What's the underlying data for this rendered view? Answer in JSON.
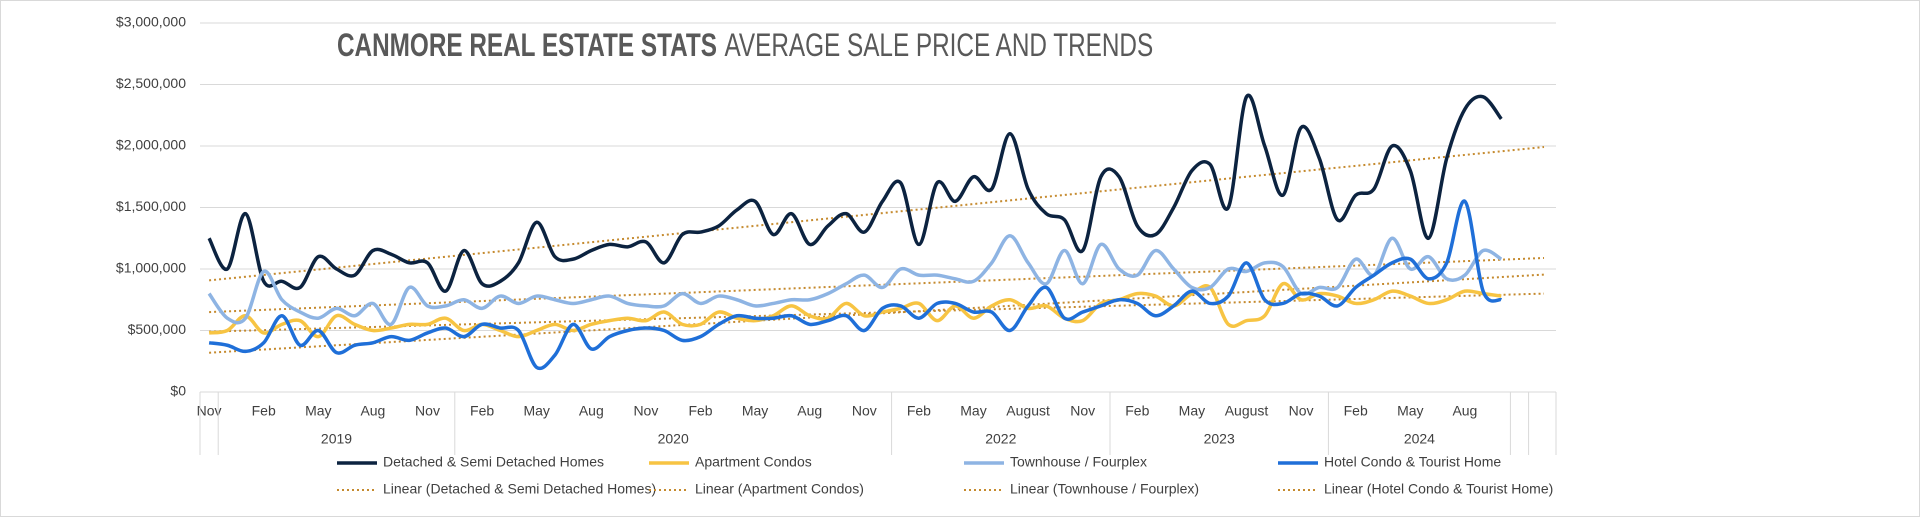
{
  "chart_data": {
    "type": "line",
    "title": "CANMORE REAL ESTATE STATS",
    "subtitle": "AVERAGE SALE PRICE AND TRENDS",
    "categories": [
      "Nov",
      null,
      null,
      "Feb",
      null,
      null,
      "May",
      null,
      null,
      "Aug",
      null,
      null,
      "Nov",
      null,
      null,
      "Feb",
      null,
      null,
      "May",
      null,
      null,
      "Aug",
      null,
      null,
      "Nov",
      null,
      null,
      "Feb",
      null,
      null,
      "May",
      null,
      null,
      "Aug",
      null,
      null,
      "Nov",
      null,
      null,
      "Feb",
      null,
      null,
      "May",
      null,
      null,
      "August",
      null,
      null,
      "Nov",
      null,
      null,
      "Feb",
      null,
      null,
      "May",
      null,
      null,
      "August",
      null,
      null,
      "Nov",
      null,
      null,
      "Feb",
      null,
      null,
      "May",
      null,
      null,
      "Aug",
      null,
      null
    ],
    "category_years": [
      null,
      "2019",
      "2019",
      "2019",
      "2019",
      "2019",
      "2019",
      "2019",
      "2019",
      "2019",
      "2019",
      "2019",
      "2019",
      "2019",
      "2020",
      "2020",
      "2020",
      "2020",
      "2020",
      "2020",
      "2020",
      "2020",
      "2020",
      "2020",
      "2020",
      "2020",
      "2020",
      "2020",
      "2020",
      "2020",
      "2020",
      "2020",
      "2020",
      "2020",
      "2020",
      "2020",
      "2020",
      "2020",
      "2022",
      "2022",
      "2022",
      "2022",
      "2022",
      "2022",
      "2022",
      "2022",
      "2022",
      "2022",
      "2022",
      "2022",
      "2023",
      "2023",
      "2023",
      "2023",
      "2023",
      "2023",
      "2023",
      "2023",
      "2023",
      "2023",
      "2023",
      "2023",
      "2024",
      "2024",
      "2024",
      "2024",
      "2024",
      "2024",
      "2024",
      "2024",
      "2024",
      "2024"
    ],
    "series": [
      {
        "name": "Detached & Semi Detached Homes",
        "color": "#0c2340",
        "trendline": {
          "name": "Linear (Detached & Semi Detached Homes)",
          "color": "#c58a2e"
        },
        "values": [
          1250000,
          1000000,
          1450000,
          900000,
          900000,
          850000,
          1100000,
          1000000,
          950000,
          1150000,
          1120000,
          1050000,
          1050000,
          820000,
          1150000,
          880000,
          900000,
          1050000,
          1380000,
          1100000,
          1080000,
          1150000,
          1200000,
          1180000,
          1220000,
          1050000,
          1280000,
          1300000,
          1350000,
          1480000,
          1550000,
          1280000,
          1450000,
          1200000,
          1350000,
          1450000,
          1300000,
          1550000,
          1700000,
          1200000,
          1700000,
          1550000,
          1750000,
          1650000,
          2100000,
          1650000,
          1450000,
          1400000,
          1150000,
          1750000,
          1750000,
          1350000,
          1280000,
          1500000,
          1800000,
          1850000,
          1500000,
          2400000,
          2000000,
          1600000,
          2150000,
          1900000,
          1400000,
          1600000,
          1650000,
          2000000,
          1800000,
          1250000,
          1900000,
          2300000,
          2400000,
          2220000
        ]
      },
      {
        "name": "Apartment Condos",
        "color": "#f7c443",
        "trendline": {
          "name": "Linear (Apartment Condos)",
          "color": "#c58a2e"
        },
        "values": [
          480000,
          500000,
          620000,
          480000,
          550000,
          580000,
          450000,
          620000,
          550000,
          500000,
          520000,
          550000,
          550000,
          600000,
          500000,
          550000,
          500000,
          450000,
          500000,
          550000,
          500000,
          550000,
          580000,
          600000,
          580000,
          650000,
          550000,
          550000,
          650000,
          600000,
          580000,
          620000,
          700000,
          620000,
          600000,
          720000,
          620000,
          650000,
          680000,
          720000,
          580000,
          700000,
          600000,
          700000,
          750000,
          680000,
          700000,
          600000,
          580000,
          720000,
          750000,
          800000,
          780000,
          700000,
          800000,
          850000,
          550000,
          580000,
          620000,
          880000,
          750000,
          800000,
          780000,
          720000,
          750000,
          820000,
          780000,
          720000,
          750000,
          820000,
          800000,
          780000
        ]
      },
      {
        "name": "Townhouse / Fourplex",
        "color": "#8eb4e3",
        "trendline": {
          "name": "Linear (Townhouse / Fourplex)",
          "color": "#c58a2e"
        },
        "values": [
          800000,
          600000,
          600000,
          980000,
          750000,
          650000,
          600000,
          680000,
          620000,
          720000,
          550000,
          850000,
          700000,
          700000,
          750000,
          680000,
          780000,
          720000,
          780000,
          750000,
          720000,
          750000,
          780000,
          720000,
          700000,
          700000,
          800000,
          720000,
          780000,
          750000,
          700000,
          720000,
          750000,
          750000,
          800000,
          880000,
          950000,
          850000,
          1000000,
          950000,
          950000,
          920000,
          900000,
          1050000,
          1270000,
          1050000,
          880000,
          1150000,
          880000,
          1200000,
          1000000,
          950000,
          1150000,
          1000000,
          850000,
          850000,
          1000000,
          980000,
          1050000,
          1020000,
          800000,
          850000,
          850000,
          1080000,
          950000,
          1250000,
          1000000,
          1100000,
          920000,
          950000,
          1150000,
          1080000
        ]
      },
      {
        "name": "Hotel Condo & Tourist Home",
        "color": "#1f6fd8",
        "trendline": {
          "name": "Linear (Hotel Condo & Tourist Home)",
          "color": "#c58a2e"
        },
        "values": [
          400000,
          380000,
          330000,
          400000,
          620000,
          380000,
          500000,
          320000,
          380000,
          400000,
          450000,
          420000,
          480000,
          520000,
          450000,
          550000,
          520000,
          500000,
          200000,
          300000,
          550000,
          350000,
          450000,
          500000,
          520000,
          500000,
          420000,
          450000,
          550000,
          620000,
          600000,
          600000,
          620000,
          550000,
          580000,
          620000,
          500000,
          680000,
          700000,
          600000,
          720000,
          720000,
          650000,
          650000,
          500000,
          700000,
          850000,
          600000,
          650000,
          700000,
          750000,
          720000,
          620000,
          700000,
          820000,
          720000,
          780000,
          1050000,
          750000,
          720000,
          800000,
          780000,
          700000,
          850000,
          950000,
          1050000,
          1080000,
          920000,
          1050000,
          1550000,
          820000,
          750000
        ]
      }
    ],
    "ylim": [
      0,
      3000000
    ],
    "yticks": [
      {
        "value": 0,
        "label": "$0"
      },
      {
        "value": 500000,
        "label": "$500,000"
      },
      {
        "value": 1000000,
        "label": "$1,000,000"
      },
      {
        "value": 1500000,
        "label": "$1,500,000"
      },
      {
        "value": 2000000,
        "label": "$2,000,000"
      },
      {
        "value": 2500000,
        "label": "$2,500,000"
      },
      {
        "value": 3000000,
        "label": "$3,000,000"
      }
    ],
    "grid": true,
    "smooth": true
  }
}
